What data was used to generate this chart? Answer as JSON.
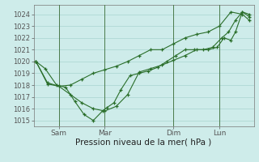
{
  "xlabel": "Pression niveau de la mer( hPa )",
  "bg_color": "#ceecea",
  "grid_color": "#a8d5d0",
  "line_color": "#2a6e2a",
  "x_ticks_labels": [
    "Sam",
    "Mar",
    "Dim",
    "Lun"
  ],
  "x_ticks_pos": [
    1,
    3,
    6,
    8
  ],
  "ylim": [
    1014.5,
    1024.8
  ],
  "yticks": [
    1015,
    1016,
    1017,
    1018,
    1019,
    1020,
    1021,
    1022,
    1023,
    1024
  ],
  "series": [
    {
      "x": [
        0,
        0.4,
        0.9,
        1.3,
        1.7,
        2.1,
        2.5,
        2.9,
        3.1,
        3.4,
        3.7,
        4.1,
        4.5,
        4.9,
        5.3,
        5.7,
        6.1,
        6.5,
        6.9,
        7.3,
        7.7,
        8.1,
        8.4,
        8.7,
        9.0,
        9.3
      ],
      "y": [
        1020.0,
        1019.4,
        1018.0,
        1017.8,
        1016.6,
        1015.5,
        1015.0,
        1015.8,
        1016.1,
        1016.5,
        1017.6,
        1018.8,
        1019.0,
        1019.2,
        1019.5,
        1020.0,
        1020.5,
        1021.0,
        1021.0,
        1021.0,
        1021.2,
        1022.0,
        1022.5,
        1023.5,
        1024.2,
        1024.0
      ]
    },
    {
      "x": [
        0,
        0.5,
        1.0,
        1.5,
        2.0,
        2.5,
        3.0,
        3.5,
        4.0,
        4.5,
        5.0,
        5.5,
        6.0,
        6.5,
        7.0,
        7.5,
        7.9,
        8.2,
        8.5,
        8.7,
        9.0,
        9.3
      ],
      "y": [
        1020.0,
        1018.2,
        1017.9,
        1017.2,
        1016.5,
        1016.0,
        1015.8,
        1016.2,
        1017.2,
        1019.1,
        1019.4,
        1019.7,
        1020.1,
        1020.5,
        1021.0,
        1021.0,
        1021.2,
        1022.0,
        1021.8,
        1022.5,
        1024.2,
        1023.8
      ]
    },
    {
      "x": [
        0,
        0.5,
        1.0,
        1.5,
        2.0,
        2.5,
        3.0,
        3.5,
        4.0,
        4.5,
        5.0,
        5.5,
        6.0,
        6.5,
        7.0,
        7.5,
        8.0,
        8.5,
        9.0,
        9.3
      ],
      "y": [
        1020.0,
        1018.1,
        1017.9,
        1018.0,
        1018.5,
        1019.0,
        1019.3,
        1019.6,
        1020.0,
        1020.5,
        1021.0,
        1021.0,
        1021.5,
        1022.0,
        1022.3,
        1022.5,
        1023.0,
        1024.2,
        1024.0,
        1023.5
      ]
    }
  ],
  "vlines_x": [
    1,
    3,
    6,
    8
  ],
  "xlim": [
    -0.1,
    9.5
  ]
}
